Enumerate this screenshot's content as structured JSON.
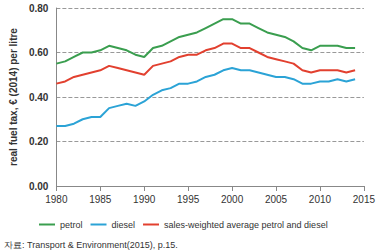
{
  "chart_data": {
    "type": "line",
    "y_label": "real fuel tax, € (2014) per litre",
    "source": "자료: Transport & Environment(2015), p.15.",
    "x": [
      1980,
      1981,
      1982,
      1983,
      1984,
      1985,
      1986,
      1987,
      1988,
      1989,
      1990,
      1991,
      1992,
      1993,
      1994,
      1995,
      1996,
      1997,
      1998,
      1999,
      2000,
      2001,
      2002,
      2003,
      2004,
      2005,
      2006,
      2007,
      2008,
      2009,
      2010,
      2011,
      2012,
      2013,
      2014
    ],
    "series": [
      {
        "name": "petrol",
        "color": "#3a9e4f",
        "values": [
          0.55,
          0.56,
          0.58,
          0.6,
          0.6,
          0.61,
          0.63,
          0.62,
          0.61,
          0.59,
          0.58,
          0.62,
          0.63,
          0.65,
          0.67,
          0.68,
          0.69,
          0.71,
          0.73,
          0.75,
          0.75,
          0.73,
          0.73,
          0.71,
          0.69,
          0.68,
          0.67,
          0.65,
          0.62,
          0.61,
          0.63,
          0.63,
          0.63,
          0.62,
          0.62
        ]
      },
      {
        "name": "diesel",
        "color": "#2ba3d6",
        "values": [
          0.27,
          0.27,
          0.28,
          0.3,
          0.31,
          0.31,
          0.35,
          0.36,
          0.37,
          0.36,
          0.38,
          0.41,
          0.43,
          0.44,
          0.46,
          0.46,
          0.47,
          0.49,
          0.5,
          0.52,
          0.53,
          0.52,
          0.52,
          0.51,
          0.5,
          0.49,
          0.49,
          0.48,
          0.46,
          0.46,
          0.47,
          0.47,
          0.48,
          0.47,
          0.48
        ]
      },
      {
        "name": "sales-weighted average petrol and diesel",
        "color": "#e2402f",
        "values": [
          0.46,
          0.47,
          0.49,
          0.5,
          0.51,
          0.52,
          0.54,
          0.53,
          0.52,
          0.51,
          0.5,
          0.54,
          0.55,
          0.56,
          0.58,
          0.59,
          0.59,
          0.61,
          0.62,
          0.64,
          0.64,
          0.62,
          0.62,
          0.6,
          0.58,
          0.57,
          0.56,
          0.55,
          0.52,
          0.51,
          0.52,
          0.52,
          0.52,
          0.51,
          0.52
        ]
      }
    ],
    "xlim": [
      1980,
      2015
    ],
    "xticks": [
      1980,
      1985,
      1990,
      1995,
      2000,
      2005,
      2010,
      2015
    ],
    "ylim": [
      0,
      0.8
    ],
    "yticks": [
      {
        "value": 0,
        "label": "0.00"
      },
      {
        "value": 0.2,
        "label": "0.20"
      },
      {
        "value": 0.4,
        "label": "0.40"
      },
      {
        "value": 0.6,
        "label": "0.60"
      },
      {
        "value": 0.8,
        "label": "0.80"
      }
    ],
    "grid": true,
    "legend": "bottom"
  }
}
